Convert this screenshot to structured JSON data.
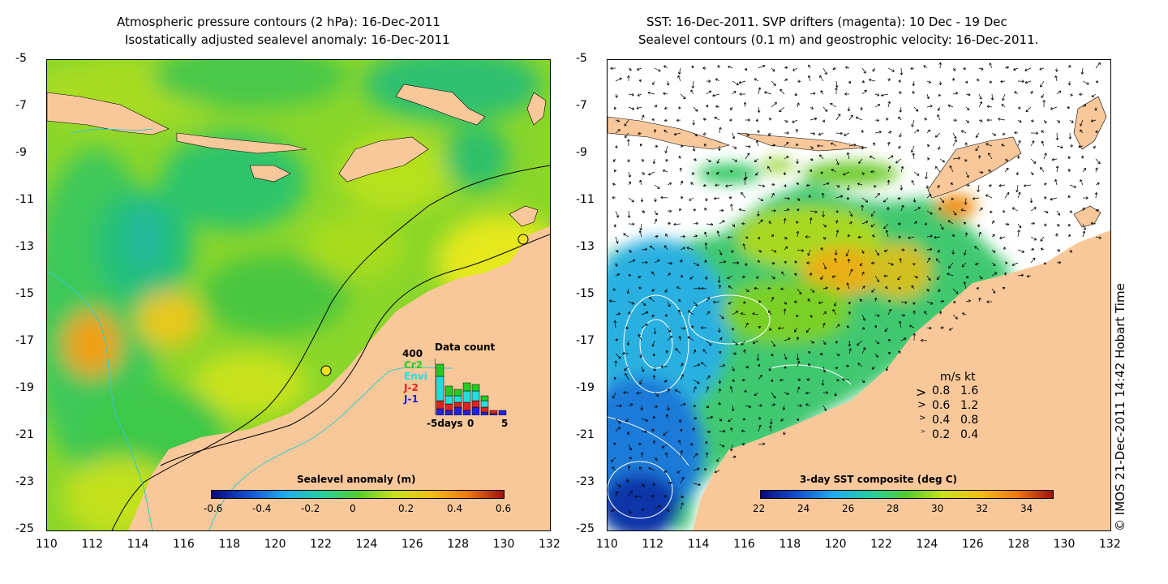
{
  "left_panel": {
    "title_line1": "Atmospheric pressure contours (2 hPa): 16-Dec-2011",
    "title_line2": "Isostatically adjusted sealevel anomaly: 16-Dec-2011",
    "colorbar": {
      "title": "Sealevel anomaly (m)",
      "ticks": [
        "-0.6",
        "-0.4",
        "-0.2",
        "0",
        "0.2",
        "0.4",
        "0.6"
      ],
      "range": [
        -0.6,
        0.6
      ]
    },
    "data_count": {
      "title": "Data count",
      "ymax_label": "400",
      "missions": [
        {
          "name": "Cr2",
          "color": "#22cc22"
        },
        {
          "name": "Envi",
          "color": "#22dddd"
        },
        {
          "name": "J-2",
          "color": "#dd2222"
        },
        {
          "name": "J-1",
          "color": "#2222dd"
        }
      ],
      "xlabel": "-5days",
      "xticks": [
        "0",
        "5"
      ]
    }
  },
  "right_panel": {
    "title_line1": "SST: 16-Dec-2011. SVP drifters (magenta): 10 Dec - 19 Dec",
    "title_line2": "Sealevel contours (0.1 m) and geostrophic velocity: 16-Dec-2011.",
    "colorbar": {
      "title": "3-day SST composite (deg C)",
      "ticks": [
        "22",
        "24",
        "26",
        "28",
        "30",
        "32",
        "34"
      ],
      "range": [
        22,
        35
      ]
    },
    "velocity_legend": {
      "header_ms": "m/s",
      "header_kt": "kt",
      "rows": [
        {
          "ms": "0.8",
          "kt": "1.6"
        },
        {
          "ms": "0.6",
          "kt": "1.2"
        },
        {
          "ms": "0.4",
          "kt": "0.8"
        },
        {
          "ms": "0.2",
          "kt": "0.4"
        }
      ]
    }
  },
  "axes": {
    "x_ticks": [
      "110",
      "112",
      "114",
      "116",
      "118",
      "120",
      "122",
      "124",
      "126",
      "128",
      "130",
      "132"
    ],
    "y_ticks": [
      "-5",
      "-7",
      "-9",
      "-11",
      "-13",
      "-15",
      "-17",
      "-19",
      "-21",
      "-23",
      "-25"
    ],
    "lon_range": [
      110,
      132
    ],
    "lat_range": [
      -25,
      -5
    ]
  },
  "credit": "© IMOS 21-Dec-2011 14:42 Hobart Time",
  "colors": {
    "land": "#f9c89a",
    "contour": "#000000",
    "drifter": "#ff00ff",
    "isobath": "#33cccc"
  }
}
